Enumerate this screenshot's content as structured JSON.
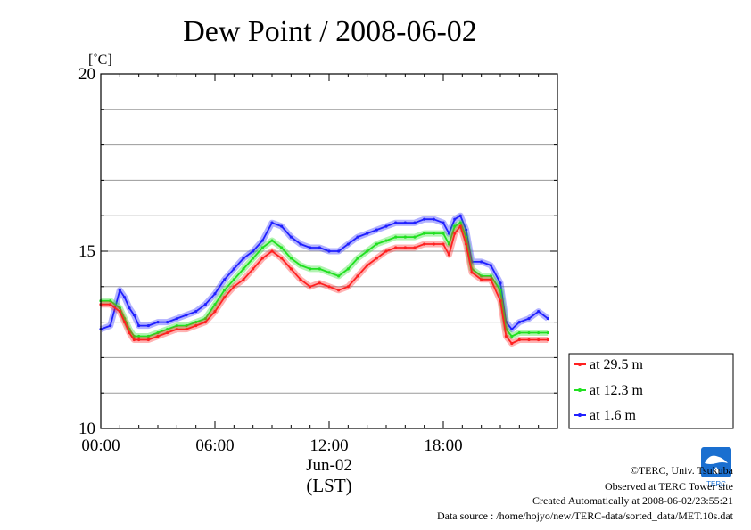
{
  "chart_data": {
    "type": "line",
    "title": "Dew Point / 2008-06-02",
    "y_unit": "[˚C]",
    "ylim": [
      10,
      20
    ],
    "y_ticks": [
      "10",
      "15",
      "20"
    ],
    "y_gridlines": [
      11,
      12,
      13,
      14,
      15,
      16,
      17,
      18,
      19
    ],
    "xlim": [
      0,
      24
    ],
    "x_ticks": [
      {
        "hour": 0,
        "label": "00:00"
      },
      {
        "hour": 6,
        "label": "06:00"
      },
      {
        "hour": 12,
        "label": "12:00"
      },
      {
        "hour": 18,
        "label": "18:00"
      }
    ],
    "x_date_label": "Jun-02",
    "xlabel": "(LST)",
    "grid": "horizontal",
    "legend_position": "right",
    "x": [
      0,
      0.5,
      1,
      1.25,
      1.5,
      1.75,
      2,
      2.5,
      3,
      3.5,
      4,
      4.5,
      5,
      5.5,
      6,
      6.5,
      7,
      7.5,
      8,
      8.5,
      9,
      9.5,
      10,
      10.5,
      11,
      11.5,
      12,
      12.5,
      13,
      13.5,
      14,
      14.5,
      15,
      15.5,
      16,
      16.5,
      17,
      17.5,
      18,
      18.3,
      18.6,
      18.9,
      19.2,
      19.5,
      20,
      20.5,
      21,
      21.3,
      21.6,
      22,
      22.5,
      23,
      23.5
    ],
    "series": [
      {
        "name": "at 29.5 m",
        "color": "#ff2020",
        "values": [
          13.5,
          13.5,
          13.3,
          13.0,
          12.7,
          12.5,
          12.5,
          12.5,
          12.6,
          12.7,
          12.8,
          12.8,
          12.9,
          13.0,
          13.3,
          13.7,
          14.0,
          14.2,
          14.5,
          14.8,
          15.0,
          14.8,
          14.5,
          14.2,
          14.0,
          14.1,
          14.0,
          13.9,
          14.0,
          14.3,
          14.6,
          14.8,
          15.0,
          15.1,
          15.1,
          15.1,
          15.2,
          15.2,
          15.2,
          14.9,
          15.5,
          15.7,
          15.2,
          14.4,
          14.2,
          14.2,
          13.6,
          12.6,
          12.4,
          12.5,
          12.5,
          12.5,
          12.5
        ]
      },
      {
        "name": "at 12.3 m",
        "color": "#20e020",
        "values": [
          13.6,
          13.6,
          13.4,
          13.1,
          12.8,
          12.6,
          12.6,
          12.6,
          12.7,
          12.8,
          12.9,
          12.9,
          13.0,
          13.1,
          13.5,
          13.9,
          14.2,
          14.5,
          14.8,
          15.1,
          15.3,
          15.1,
          14.8,
          14.6,
          14.5,
          14.5,
          14.4,
          14.3,
          14.5,
          14.8,
          15.0,
          15.2,
          15.3,
          15.4,
          15.4,
          15.4,
          15.5,
          15.5,
          15.5,
          15.2,
          15.7,
          15.8,
          15.4,
          14.5,
          14.3,
          14.3,
          13.9,
          12.8,
          12.6,
          12.7,
          12.7,
          12.7,
          12.7
        ]
      },
      {
        "name": "at 1.6 m",
        "color": "#2020ff",
        "values": [
          12.8,
          12.9,
          13.9,
          13.7,
          13.4,
          13.2,
          12.9,
          12.9,
          13.0,
          13.0,
          13.1,
          13.2,
          13.3,
          13.5,
          13.8,
          14.2,
          14.5,
          14.8,
          15.0,
          15.3,
          15.8,
          15.7,
          15.4,
          15.2,
          15.1,
          15.1,
          15.0,
          15.0,
          15.2,
          15.4,
          15.5,
          15.6,
          15.7,
          15.8,
          15.8,
          15.8,
          15.9,
          15.9,
          15.8,
          15.5,
          15.9,
          16.0,
          15.6,
          14.7,
          14.7,
          14.6,
          14.1,
          13.0,
          12.8,
          13.0,
          13.1,
          13.3,
          13.1
        ]
      }
    ]
  },
  "credits": {
    "copyright": "©TERC, Univ. Tsukuba",
    "observed": "Observed at TERC Tower site",
    "created": "Created Automatically at 2008-06-02/23:55:21",
    "source": "Data source : /home/hojyo/new/TERC-data/sorted_data/MET.10s.dat"
  },
  "logo": {
    "text": "TERC",
    "color": "#1a6fd0"
  }
}
